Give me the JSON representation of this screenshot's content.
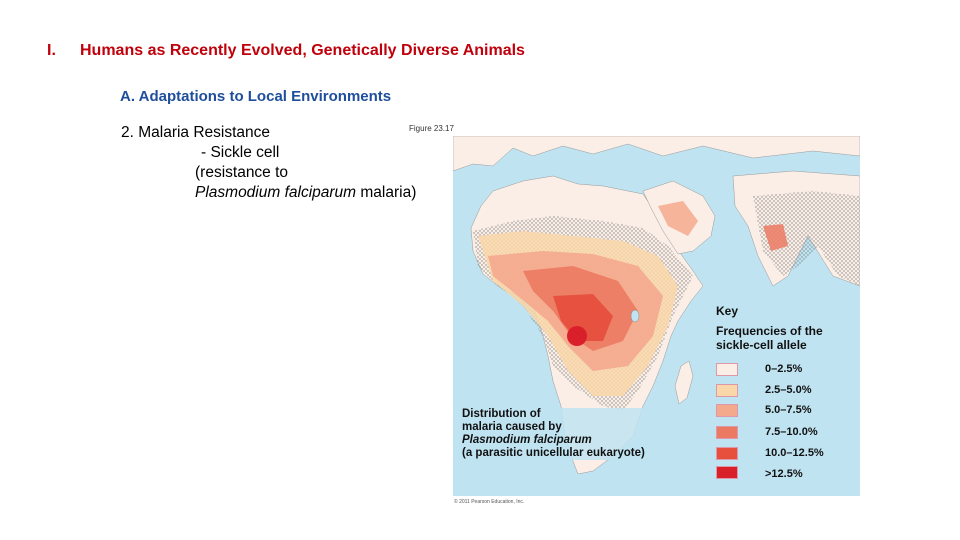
{
  "slide": {
    "section_number": "I.",
    "title": "Humans as Recently Evolved, Genetically Diverse Animals",
    "subtitle": "A. Adaptations to Local Environments",
    "lines": [
      "2. Malaria Resistance",
      "- Sickle cell",
      "(resistance to",
      "Plasmodium falciparum",
      " malaria)"
    ]
  },
  "figure": {
    "label": "Figure 23.17",
    "copyright": "© 2011 Pearson Education, Inc.",
    "key_title": "Key",
    "key_subtitle": "Frequencies of the sickle-cell allele",
    "legend": [
      {
        "label": "0–2.5%",
        "color": "#faeee6"
      },
      {
        "label": "2.5–5.0%",
        "color": "#fad7a8"
      },
      {
        "label": "5.0–7.5%",
        "color": "#f4a98d"
      },
      {
        "label": "7.5–10.0%",
        "color": "#ec7a63"
      },
      {
        "label": "10.0–12.5%",
        "color": "#e6503d"
      },
      {
        "label": ">12.5%",
        "color": "#d9202a"
      }
    ],
    "distribution_lines": [
      "Distribution of",
      "malaria caused by",
      "Plasmodium falciparum",
      "(a parasitic unicellular eukaryote)"
    ],
    "ocean_color": "#bfe3f1"
  }
}
